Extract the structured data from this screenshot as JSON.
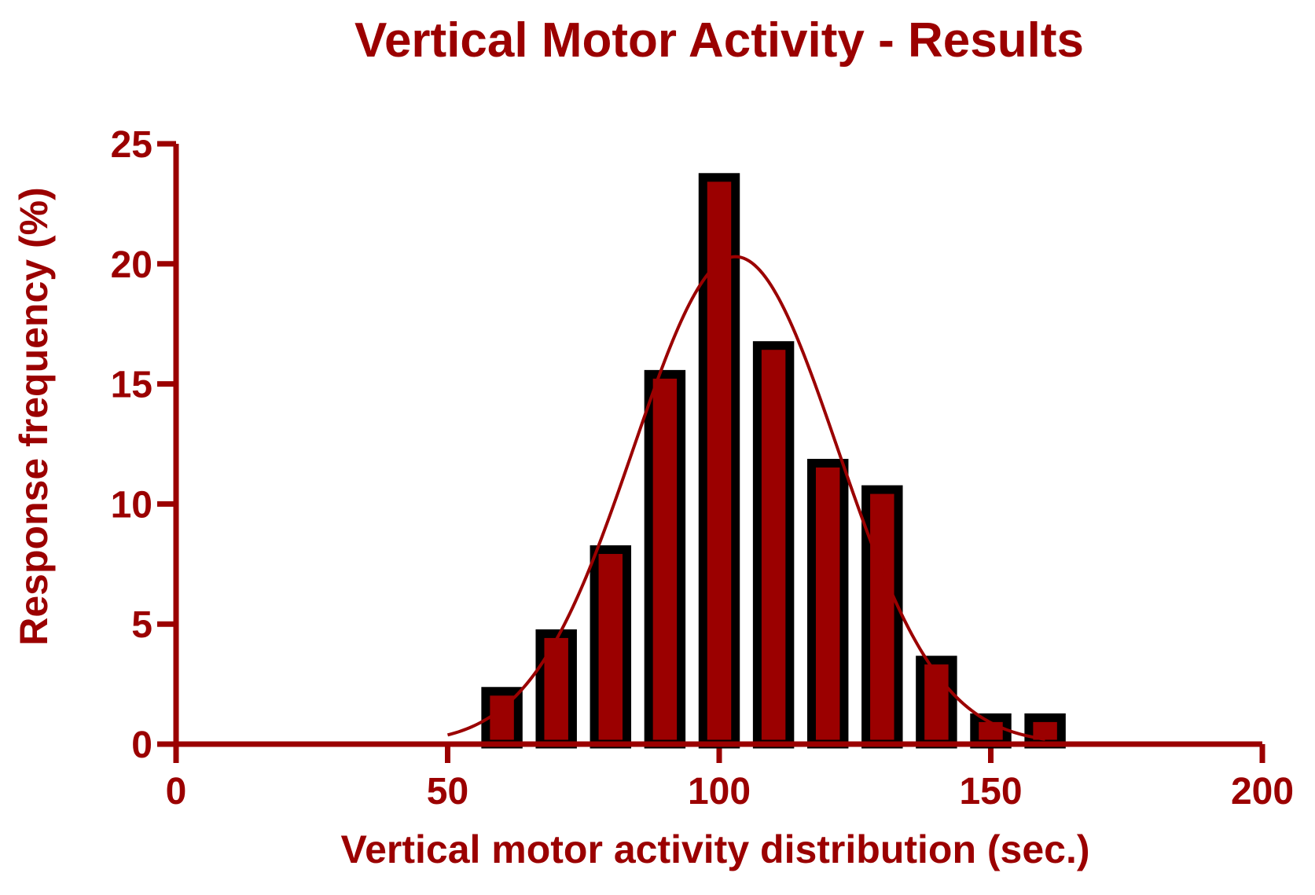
{
  "chart_data": {
    "type": "bar",
    "title": "Vertical Motor Activity - Results",
    "xlabel": "Vertical motor activity distribution (sec.)",
    "ylabel": "Response frequency (%)",
    "xlim": [
      0,
      200
    ],
    "ylim": [
      0,
      25
    ],
    "x_ticks": [
      "0",
      "50",
      "100",
      "150",
      "200"
    ],
    "y_ticks": [
      "0",
      "5",
      "10",
      "15",
      "20",
      "25"
    ],
    "bar_width": 6,
    "x": [
      60,
      70,
      80,
      90,
      100,
      110,
      120,
      130,
      140,
      150,
      160
    ],
    "values": [
      2.2,
      4.6,
      8.1,
      15.4,
      23.6,
      16.6,
      11.7,
      10.6,
      3.5,
      1.1,
      1.1
    ],
    "fit_curve": {
      "type": "gaussian",
      "amplitude": 20.3,
      "mean": 103,
      "sd": 18.8,
      "x_range": [
        50,
        160
      ]
    },
    "grid": false,
    "legend": "none"
  },
  "colors": {
    "bar_fill": "#9b0000",
    "bar_outline": "#000000",
    "axis": "#9b0000",
    "text": "#9b0000",
    "curve": "#9b0000"
  }
}
